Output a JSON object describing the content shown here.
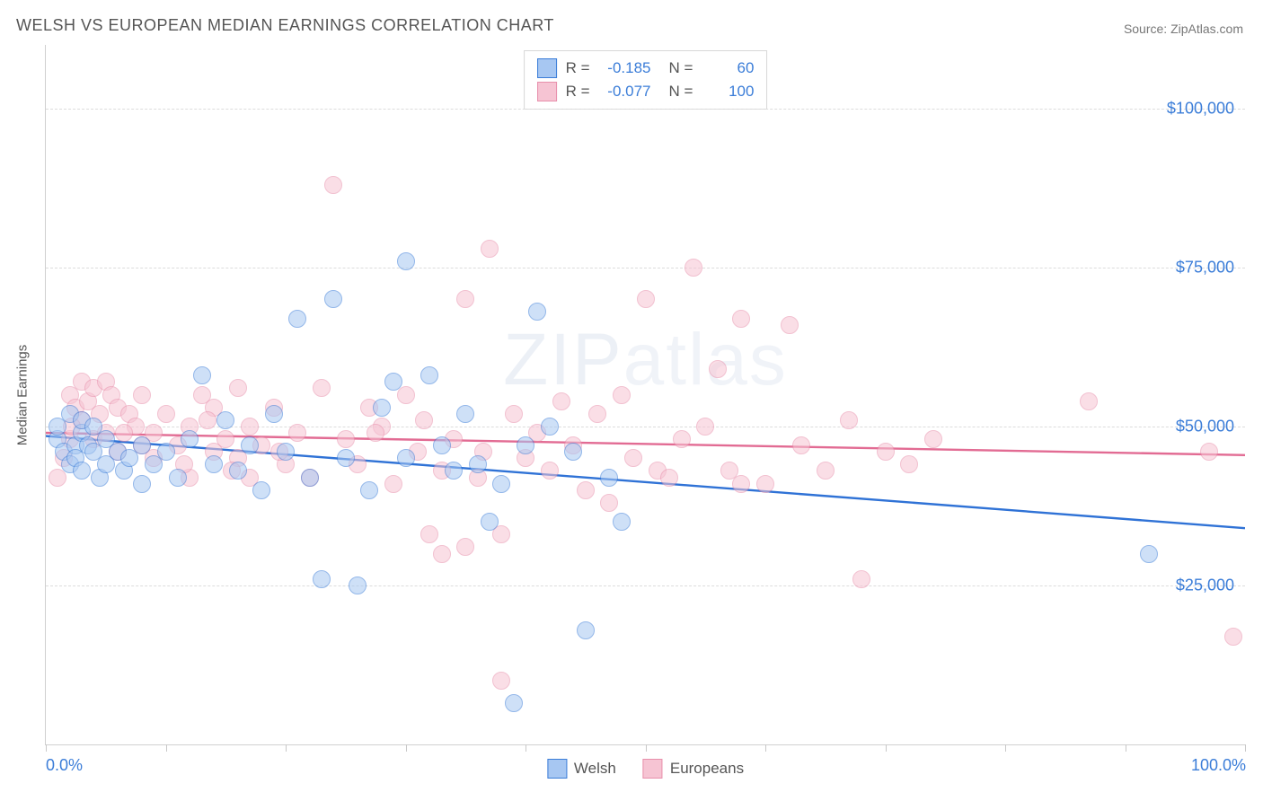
{
  "title": "WELSH VS EUROPEAN MEDIAN EARNINGS CORRELATION CHART",
  "source_label": "Source: ZipAtlas.com",
  "watermark_text_bold": "ZIP",
  "watermark_text_thin": "atlas",
  "y_axis_title": "Median Earnings",
  "chart": {
    "type": "scatter",
    "background_color": "#ffffff",
    "grid_color": "#dcdcdc",
    "axis_color": "#d0d0d0",
    "xlim": [
      0,
      100
    ],
    "ylim": [
      0,
      110000
    ],
    "y_ticks": [
      {
        "value": 25000,
        "label": "$25,000"
      },
      {
        "value": 50000,
        "label": "$50,000"
      },
      {
        "value": 75000,
        "label": "$75,000"
      },
      {
        "value": 100000,
        "label": "$100,000"
      }
    ],
    "x_tick_positions": [
      0,
      10,
      20,
      30,
      40,
      50,
      60,
      70,
      80,
      90,
      100
    ],
    "x_tick_labels": {
      "0": "0.0%",
      "100": "100.0%"
    },
    "tick_label_color": "#3b7dd8",
    "tick_label_fontsize": 18,
    "marker_radius": 10,
    "marker_opacity": 0.55,
    "marker_stroke_width": 1.2,
    "trend_line_width": 2.4
  },
  "series": [
    {
      "name": "Welsh",
      "fill_color": "#a7c7f2",
      "stroke_color": "#3b7dd8",
      "trend_color": "#2f72d6",
      "R": "-0.185",
      "N": "60",
      "trend_y_at_x0": 48500,
      "trend_y_at_x100": 34000,
      "points": [
        [
          1,
          48000
        ],
        [
          1,
          50000
        ],
        [
          1.5,
          46000
        ],
        [
          2,
          52000
        ],
        [
          2,
          44000
        ],
        [
          2.5,
          47000
        ],
        [
          2.5,
          45000
        ],
        [
          3,
          49000
        ],
        [
          3,
          43000
        ],
        [
          3,
          51000
        ],
        [
          3.5,
          47000
        ],
        [
          4,
          46000
        ],
        [
          4,
          50000
        ],
        [
          4.5,
          42000
        ],
        [
          5,
          44000
        ],
        [
          5,
          48000
        ],
        [
          6,
          46000
        ],
        [
          6.5,
          43000
        ],
        [
          7,
          45000
        ],
        [
          8,
          41000
        ],
        [
          8,
          47000
        ],
        [
          9,
          44000
        ],
        [
          10,
          46000
        ],
        [
          11,
          42000
        ],
        [
          12,
          48000
        ],
        [
          13,
          58000
        ],
        [
          14,
          44000
        ],
        [
          15,
          51000
        ],
        [
          16,
          43000
        ],
        [
          18,
          40000
        ],
        [
          17,
          47000
        ],
        [
          19,
          52000
        ],
        [
          20,
          46000
        ],
        [
          21,
          67000
        ],
        [
          22,
          42000
        ],
        [
          23,
          26000
        ],
        [
          24,
          70000
        ],
        [
          25,
          45000
        ],
        [
          26,
          25000
        ],
        [
          27,
          40000
        ],
        [
          28,
          53000
        ],
        [
          29,
          57000
        ],
        [
          30,
          45000
        ],
        [
          30,
          76000
        ],
        [
          32,
          58000
        ],
        [
          33,
          47000
        ],
        [
          34,
          43000
        ],
        [
          35,
          52000
        ],
        [
          36,
          44000
        ],
        [
          37,
          35000
        ],
        [
          38,
          41000
        ],
        [
          39,
          6500
        ],
        [
          40,
          47000
        ],
        [
          41,
          68000
        ],
        [
          42,
          50000
        ],
        [
          44,
          46000
        ],
        [
          45,
          18000
        ],
        [
          47,
          42000
        ],
        [
          92,
          30000
        ],
        [
          48,
          35000
        ]
      ]
    },
    {
      "name": "Europeans",
      "fill_color": "#f6c4d3",
      "stroke_color": "#e88fab",
      "trend_color": "#e26b93",
      "R": "-0.077",
      "N": "100",
      "trend_y_at_x0": 49000,
      "trend_y_at_x100": 45500,
      "points": [
        [
          1,
          42000
        ],
        [
          2,
          48000
        ],
        [
          2,
          55000
        ],
        [
          2.5,
          53000
        ],
        [
          3,
          57000
        ],
        [
          3,
          51000
        ],
        [
          3.5,
          54000
        ],
        [
          4,
          56000
        ],
        [
          4,
          48000
        ],
        [
          4.5,
          52000
        ],
        [
          5,
          57000
        ],
        [
          5,
          49000
        ],
        [
          5.5,
          55000
        ],
        [
          6,
          53000
        ],
        [
          6,
          46000
        ],
        [
          7,
          52000
        ],
        [
          7.5,
          50000
        ],
        [
          8,
          47000
        ],
        [
          8,
          55000
        ],
        [
          9,
          49000
        ],
        [
          9,
          45000
        ],
        [
          10,
          52000
        ],
        [
          11,
          47000
        ],
        [
          12,
          50000
        ],
        [
          12,
          42000
        ],
        [
          13,
          55000
        ],
        [
          14,
          46000
        ],
        [
          14,
          53000
        ],
        [
          15,
          48000
        ],
        [
          16,
          45000
        ],
        [
          16,
          56000
        ],
        [
          17,
          42000
        ],
        [
          17,
          50000
        ],
        [
          18,
          47000
        ],
        [
          19,
          53000
        ],
        [
          20,
          44000
        ],
        [
          21,
          49000
        ],
        [
          22,
          42000
        ],
        [
          23,
          56000
        ],
        [
          24,
          88000
        ],
        [
          25,
          48000
        ],
        [
          26,
          44000
        ],
        [
          27,
          53000
        ],
        [
          28,
          50000
        ],
        [
          29,
          41000
        ],
        [
          30,
          55000
        ],
        [
          31,
          46000
        ],
        [
          32,
          33000
        ],
        [
          33,
          43000
        ],
        [
          33,
          30000
        ],
        [
          34,
          48000
        ],
        [
          35,
          31000
        ],
        [
          35,
          70000
        ],
        [
          36,
          42000
        ],
        [
          37,
          78000
        ],
        [
          38,
          33000
        ],
        [
          38,
          10000
        ],
        [
          39,
          52000
        ],
        [
          40,
          45000
        ],
        [
          41,
          49000
        ],
        [
          42,
          43000
        ],
        [
          43,
          54000
        ],
        [
          44,
          47000
        ],
        [
          45,
          40000
        ],
        [
          46,
          52000
        ],
        [
          47,
          38000
        ],
        [
          48,
          55000
        ],
        [
          49,
          45000
        ],
        [
          50,
          70000
        ],
        [
          51,
          43000
        ],
        [
          52,
          42000
        ],
        [
          53,
          48000
        ],
        [
          54,
          75000
        ],
        [
          55,
          50000
        ],
        [
          56,
          59000
        ],
        [
          57,
          43000
        ],
        [
          58,
          41000
        ],
        [
          58,
          67000
        ],
        [
          60,
          41000
        ],
        [
          62,
          66000
        ],
        [
          63,
          47000
        ],
        [
          65,
          43000
        ],
        [
          67,
          51000
        ],
        [
          68,
          26000
        ],
        [
          70,
          46000
        ],
        [
          87,
          54000
        ],
        [
          72,
          44000
        ],
        [
          74,
          48000
        ],
        [
          97,
          46000
        ],
        [
          99,
          17000
        ],
        [
          1.5,
          45000
        ],
        [
          2.2,
          50000
        ],
        [
          6.5,
          49000
        ],
        [
          11.5,
          44000
        ],
        [
          13.5,
          51000
        ],
        [
          15.5,
          43000
        ],
        [
          19.5,
          46000
        ],
        [
          27.5,
          49000
        ],
        [
          31.5,
          51000
        ],
        [
          36.5,
          46000
        ]
      ]
    }
  ],
  "stats_legend": {
    "r_label": "R =",
    "n_label": "N ="
  },
  "bottom_legend": {
    "items": [
      "Welsh",
      "Europeans"
    ]
  }
}
